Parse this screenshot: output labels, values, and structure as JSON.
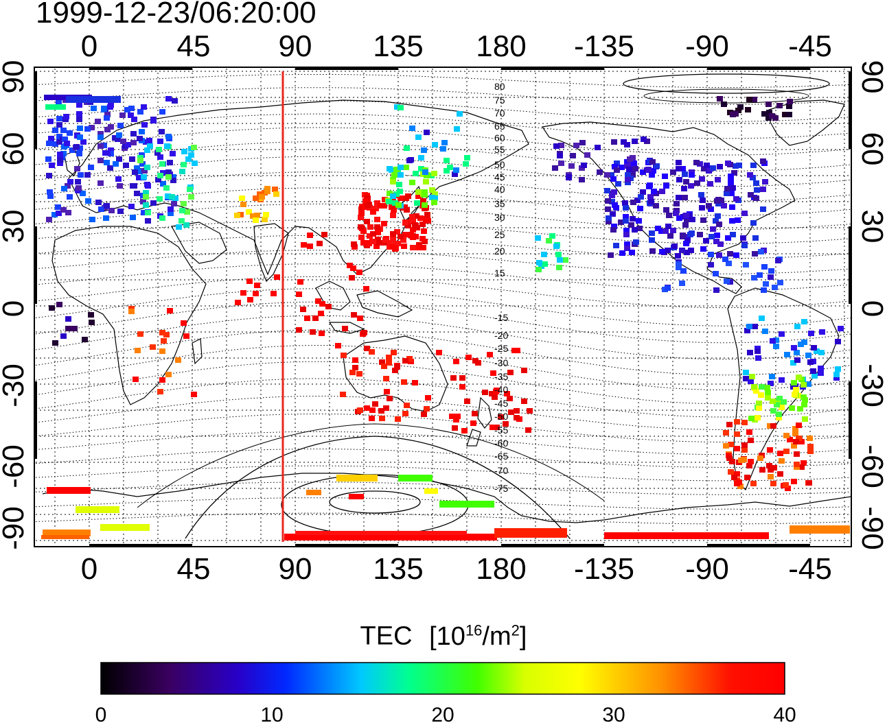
{
  "title": "1999-12-23/06:20:00",
  "map": {
    "lon_labels": [
      "0",
      "45",
      "90",
      "135",
      "180",
      "-135",
      "-90",
      "-45"
    ],
    "lat_labels_left": [
      "90",
      "60",
      "30",
      "0",
      "-30",
      "-60",
      "-90"
    ],
    "lat_labels_right": [
      "90",
      "60",
      "30",
      "0",
      "-30",
      "-60",
      "-90"
    ],
    "contour_labels_north": [
      "80",
      "75",
      "70",
      "65",
      "60",
      "55",
      "50",
      "45",
      "40",
      "35",
      "30",
      "25",
      "20",
      "15"
    ],
    "contour_labels_south": [
      "-15",
      "-20",
      "-25",
      "-30",
      "-35",
      "-40",
      "-45",
      "-50",
      "-55",
      "-60",
      "-65",
      "-70",
      "-75"
    ],
    "subsolar_meridian_color": "#e8281e",
    "grid": "dotted",
    "coastlines": "black outline",
    "data_markers": "colored squares at ionospheric pierce points"
  },
  "colorbar": {
    "title_prefix": "TEC",
    "unit_open": "[10",
    "unit_exp": "16",
    "unit_mid": "/m",
    "unit_exp2": "2",
    "unit_close": "]",
    "tick_labels": [
      "0",
      "10",
      "20",
      "30",
      "40"
    ],
    "min": 0,
    "max": 40,
    "colors": [
      "#000000",
      "#3a0060",
      "#2a00c8",
      "#0030ff",
      "#00c8ff",
      "#00ff80",
      "#60ff00",
      "#ffff00",
      "#ff8000",
      "#ff0000"
    ]
  }
}
